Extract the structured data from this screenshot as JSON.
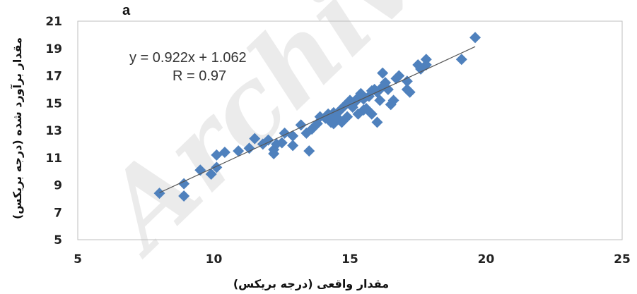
{
  "panel_label": "a",
  "equation": "y = 0.922x + 1.062",
  "r_label": "R = 0.97",
  "watermark": "Archive of SID",
  "colors": {
    "marker": "#4f81bd",
    "trendline": "#555555",
    "frame": "#bfbfbf",
    "watermark": "#c8c8c8"
  },
  "chart_data": {
    "type": "scatter",
    "xlabel": "مقدار واقعی (درجه بریکس)",
    "ylabel": "مقدار برآورد شده (درجه بریکس)",
    "xlim": [
      5,
      25
    ],
    "ylim": [
      5,
      21
    ],
    "xticks": [
      5,
      10,
      15,
      20,
      25
    ],
    "yticks": [
      5,
      7,
      9,
      11,
      13,
      15,
      17,
      19,
      21
    ],
    "grid": false,
    "trendline": {
      "slope": 0.922,
      "intercept": 1.062,
      "x_range": [
        8,
        19.6
      ]
    },
    "points": [
      [
        8.0,
        8.4
      ],
      [
        8.9,
        8.2
      ],
      [
        8.9,
        9.1
      ],
      [
        9.5,
        10.1
      ],
      [
        9.9,
        9.8
      ],
      [
        10.1,
        10.3
      ],
      [
        10.1,
        11.2
      ],
      [
        10.4,
        11.4
      ],
      [
        10.9,
        11.5
      ],
      [
        11.3,
        11.7
      ],
      [
        11.5,
        12.4
      ],
      [
        11.8,
        12.0
      ],
      [
        12.0,
        12.3
      ],
      [
        12.2,
        11.3
      ],
      [
        12.2,
        11.6
      ],
      [
        12.3,
        12.0
      ],
      [
        12.5,
        12.1
      ],
      [
        12.6,
        12.8
      ],
      [
        12.9,
        11.9
      ],
      [
        12.9,
        12.6
      ],
      [
        13.2,
        13.4
      ],
      [
        13.4,
        12.8
      ],
      [
        13.5,
        11.5
      ],
      [
        13.6,
        13.1
      ],
      [
        13.8,
        13.5
      ],
      [
        13.9,
        14.0
      ],
      [
        14.1,
        13.9
      ],
      [
        14.2,
        14.2
      ],
      [
        14.3,
        13.6
      ],
      [
        14.4,
        14.3
      ],
      [
        14.4,
        13.5
      ],
      [
        14.5,
        14.0
      ],
      [
        14.6,
        14.4
      ],
      [
        14.7,
        13.6
      ],
      [
        14.8,
        14.8
      ],
      [
        14.9,
        14.0
      ],
      [
        15.0,
        15.2
      ],
      [
        15.1,
        14.7
      ],
      [
        15.2,
        15.1
      ],
      [
        15.3,
        15.4
      ],
      [
        15.3,
        14.2
      ],
      [
        15.4,
        15.7
      ],
      [
        15.5,
        15.3
      ],
      [
        15.5,
        14.5
      ],
      [
        15.6,
        14.6
      ],
      [
        15.7,
        15.5
      ],
      [
        15.8,
        15.9
      ],
      [
        15.8,
        14.2
      ],
      [
        15.9,
        16.0
      ],
      [
        16.0,
        13.6
      ],
      [
        16.0,
        15.8
      ],
      [
        16.1,
        15.2
      ],
      [
        16.2,
        17.2
      ],
      [
        16.2,
        16.2
      ],
      [
        16.3,
        16.5
      ],
      [
        16.4,
        16.0
      ],
      [
        16.5,
        14.9
      ],
      [
        16.6,
        15.2
      ],
      [
        16.7,
        16.8
      ],
      [
        16.8,
        17.0
      ],
      [
        17.1,
        16.0
      ],
      [
        17.1,
        16.6
      ],
      [
        17.2,
        15.8
      ],
      [
        17.5,
        17.8
      ],
      [
        17.6,
        17.5
      ],
      [
        17.8,
        18.2
      ],
      [
        17.8,
        17.8
      ],
      [
        19.1,
        18.2
      ],
      [
        19.6,
        19.8
      ]
    ]
  }
}
